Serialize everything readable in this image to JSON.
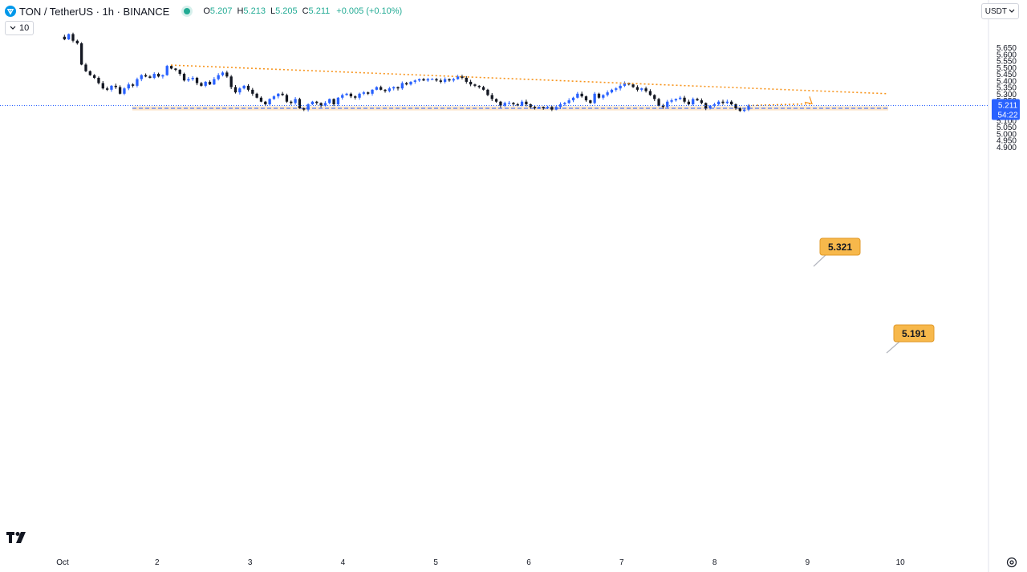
{
  "header": {
    "symbol_label": "TON / TetherUS · 1h · BINANCE",
    "open_label": "O",
    "open": "5.207",
    "high_label": "H",
    "high": "5.213",
    "low_label": "L",
    "low": "5.205",
    "close_label": "C",
    "close": "5.211",
    "change": "+0.005 (+0.10%)"
  },
  "volume_toggle": {
    "value": "10"
  },
  "currency_select": {
    "value": "USDT"
  },
  "branding": {
    "logo": "17"
  },
  "colors": {
    "up": "#2962ff",
    "down": "#131722",
    "trend": "#f7931a",
    "zone": "#fde0c0",
    "accent_badge": "#f7b84b",
    "live": "#22ab94"
  },
  "chart_data": {
    "type": "candlestick",
    "title": "TON / TetherUS · 1h · BINANCE",
    "ylim": [
      4.88,
      5.735
    ],
    "y_ticks": [
      "5.650",
      "5.600",
      "5.550",
      "5.500",
      "5.450",
      "5.400",
      "5.350",
      "5.300",
      "5.250",
      "5.200",
      "5.150",
      "5.100",
      "5.050",
      "5.000",
      "4.950",
      "4.900"
    ],
    "x_ticks": [
      "Oct",
      "2",
      "3",
      "4",
      "5",
      "6",
      "7",
      "8",
      "9",
      "10"
    ],
    "current_price": {
      "value": "5.211",
      "countdown": "54:22"
    },
    "support_zone": {
      "low": 5.174,
      "high": 5.205,
      "mid": 5.19
    },
    "trendline": {
      "start": {
        "date": "Oct 2",
        "price": 5.516
      },
      "end": {
        "date": "Oct 9",
        "price": 5.3
      }
    },
    "projection": {
      "from": 5.211,
      "to": 5.321
    },
    "labels": [
      {
        "text": "5.321",
        "price": 5.321
      },
      {
        "text": "5.191",
        "price": 5.191
      }
    ],
    "closes": [
      5.73,
      5.71,
      5.75,
      5.7,
      5.68,
      5.52,
      5.47,
      5.44,
      5.42,
      5.38,
      5.34,
      5.33,
      5.36,
      5.35,
      5.3,
      5.34,
      5.37,
      5.36,
      5.41,
      5.44,
      5.43,
      5.42,
      5.45,
      5.43,
      5.44,
      5.51,
      5.49,
      5.48,
      5.45,
      5.4,
      5.41,
      5.42,
      5.38,
      5.36,
      5.39,
      5.37,
      5.41,
      5.44,
      5.46,
      5.43,
      5.35,
      5.31,
      5.34,
      5.36,
      5.33,
      5.3,
      5.27,
      5.24,
      5.22,
      5.26,
      5.28,
      5.3,
      5.29,
      5.24,
      5.23,
      5.26,
      5.19,
      5.18,
      5.22,
      5.24,
      5.23,
      5.21,
      5.23,
      5.26,
      5.22,
      5.27,
      5.29,
      5.3,
      5.28,
      5.27,
      5.3,
      5.31,
      5.3,
      5.33,
      5.35,
      5.33,
      5.32,
      5.34,
      5.35,
      5.34,
      5.38,
      5.37,
      5.39,
      5.4,
      5.41,
      5.4,
      5.41,
      5.41,
      5.4,
      5.39,
      5.41,
      5.4,
      5.41,
      5.43,
      5.42,
      5.39,
      5.37,
      5.36,
      5.35,
      5.33,
      5.29,
      5.26,
      5.24,
      5.21,
      5.23,
      5.23,
      5.22,
      5.21,
      5.24,
      5.22,
      5.2,
      5.19,
      5.2,
      5.19,
      5.2,
      5.18,
      5.2,
      5.22,
      5.23,
      5.25,
      5.27,
      5.3,
      5.28,
      5.25,
      5.23,
      5.3,
      5.27,
      5.29,
      5.31,
      5.33,
      5.34,
      5.36,
      5.38,
      5.37,
      5.35,
      5.33,
      5.34,
      5.32,
      5.29,
      5.26,
      5.21,
      5.2,
      5.24,
      5.25,
      5.26,
      5.27,
      5.24,
      5.22,
      5.26,
      5.25,
      5.23,
      5.19,
      5.21,
      5.22,
      5.24,
      5.23,
      5.24,
      5.22,
      5.19,
      5.17,
      5.18,
      5.211
    ]
  }
}
